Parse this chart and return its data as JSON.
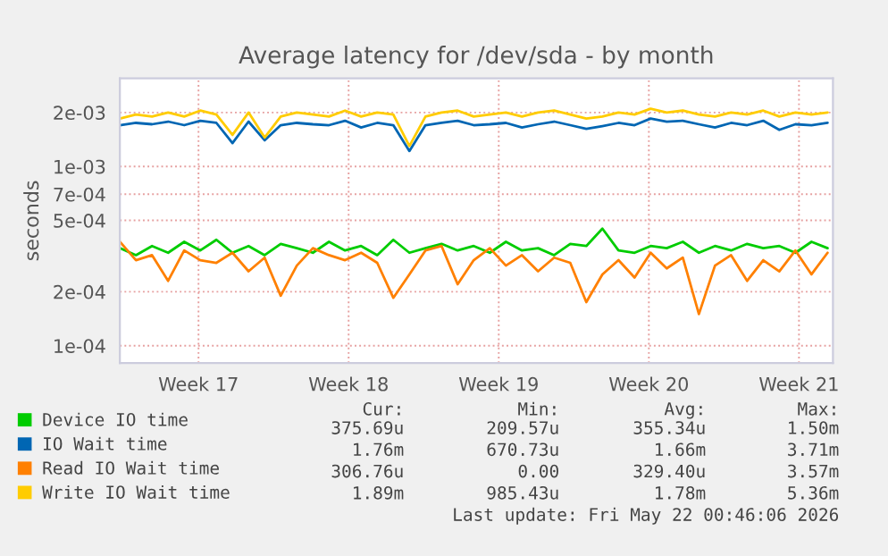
{
  "chart_data": {
    "type": "line",
    "title": "Average latency for /dev/sda - by month",
    "ylabel": "seconds",
    "x": [
      "2026-04-19T20:00",
      "2026-04-20T14:00",
      "2026-04-21T08:00",
      "2026-04-22T02:00",
      "2026-04-22T20:00",
      "2026-04-23T14:00",
      "2026-04-24T08:00",
      "2026-04-25T02:00",
      "2026-04-25T20:00",
      "2026-04-26T14:00",
      "2026-04-27T08:00",
      "2026-04-28T02:00",
      "2026-04-28T20:00",
      "2026-04-29T14:00",
      "2026-04-30T08:00",
      "2026-05-01T02:00",
      "2026-05-01T20:00",
      "2026-05-02T14:00",
      "2026-05-03T08:00",
      "2026-05-04T02:00",
      "2026-05-04T20:00",
      "2026-05-05T14:00",
      "2026-05-06T08:00",
      "2026-05-07T02:00",
      "2026-05-07T20:00",
      "2026-05-08T14:00",
      "2026-05-09T08:00",
      "2026-05-10T02:00",
      "2026-05-10T20:00",
      "2026-05-11T14:00",
      "2026-05-12T08:00",
      "2026-05-13T02:00",
      "2026-05-13T20:00",
      "2026-05-14T14:00",
      "2026-05-15T08:00",
      "2026-05-16T02:00",
      "2026-05-16T20:00",
      "2026-05-17T14:00",
      "2026-05-18T08:00",
      "2026-05-19T02:00",
      "2026-05-19T20:00",
      "2026-05-20T14:00",
      "2026-05-21T08:00",
      "2026-05-22T02:00",
      "2026-05-22T20:00"
    ],
    "series": [
      {
        "name": "Device IO time",
        "color": "#00cc00",
        "values": [
          0.00035,
          0.00032,
          0.00036,
          0.00033,
          0.00038,
          0.00034,
          0.00039,
          0.00033,
          0.00036,
          0.00032,
          0.00037,
          0.00035,
          0.00033,
          0.00038,
          0.00034,
          0.00036,
          0.00032,
          0.00039,
          0.00033,
          0.00035,
          0.00037,
          0.00034,
          0.00036,
          0.00033,
          0.00038,
          0.00034,
          0.00035,
          0.00032,
          0.00037,
          0.00036,
          0.00045,
          0.00034,
          0.00033,
          0.00036,
          0.00035,
          0.00038,
          0.00033,
          0.00036,
          0.00034,
          0.00037,
          0.00035,
          0.00036,
          0.00033,
          0.00038,
          0.00035
        ]
      },
      {
        "name": "IO Wait time",
        "color": "#0066b3",
        "values": [
          0.0017,
          0.00175,
          0.00172,
          0.00178,
          0.0017,
          0.0018,
          0.00175,
          0.00135,
          0.00178,
          0.0014,
          0.0017,
          0.00175,
          0.00172,
          0.0017,
          0.0018,
          0.00165,
          0.00175,
          0.0017,
          0.00122,
          0.0017,
          0.00175,
          0.0018,
          0.0017,
          0.00172,
          0.00175,
          0.00165,
          0.00172,
          0.00178,
          0.0017,
          0.00162,
          0.00168,
          0.00175,
          0.0017,
          0.00185,
          0.00178,
          0.0018,
          0.00172,
          0.00165,
          0.00175,
          0.0017,
          0.0018,
          0.0016,
          0.00172,
          0.0017,
          0.00175
        ]
      },
      {
        "name": "Read IO Wait time",
        "color": "#ff8000",
        "values": [
          0.00038,
          0.0003,
          0.00032,
          0.00023,
          0.00034,
          0.0003,
          0.00029,
          0.00033,
          0.00026,
          0.00031,
          0.00019,
          0.00028,
          0.00035,
          0.00032,
          0.0003,
          0.00033,
          0.00029,
          0.000185,
          0.00025,
          0.00034,
          0.00036,
          0.00022,
          0.0003,
          0.00035,
          0.00028,
          0.00032,
          0.00026,
          0.00031,
          0.00029,
          0.000175,
          0.00025,
          0.0003,
          0.00024,
          0.00033,
          0.00027,
          0.00031,
          0.00015,
          0.00028,
          0.00032,
          0.00023,
          0.0003,
          0.00026,
          0.00034,
          0.00025,
          0.00033
        ]
      },
      {
        "name": "Write IO Wait time",
        "color": "#ffcc00",
        "values": [
          0.00185,
          0.00195,
          0.0019,
          0.002,
          0.0019,
          0.00205,
          0.00195,
          0.0015,
          0.002,
          0.00145,
          0.0019,
          0.002,
          0.00195,
          0.0019,
          0.00205,
          0.0019,
          0.002,
          0.00195,
          0.0013,
          0.0019,
          0.002,
          0.00205,
          0.0019,
          0.00195,
          0.002,
          0.0019,
          0.002,
          0.00205,
          0.00195,
          0.00185,
          0.0019,
          0.002,
          0.00195,
          0.0021,
          0.002,
          0.00205,
          0.00195,
          0.0019,
          0.002,
          0.00195,
          0.00205,
          0.0019,
          0.002,
          0.00195,
          0.002
        ]
      }
    ],
    "log": true,
    "ylim": [
      8e-05,
      0.0031
    ],
    "yticks": [
      {
        "value": 0.0001,
        "label": "1e-04"
      },
      {
        "value": 0.0002,
        "label": "2e-04"
      },
      {
        "value": 0.0005,
        "label": "5e-04"
      },
      {
        "value": 0.0007,
        "label": "7e-04"
      },
      {
        "value": 0.001,
        "label": "1e-03"
      },
      {
        "value": 0.002,
        "label": "2e-03"
      }
    ],
    "xlim": [
      "2026-04-19T20:00",
      "2026-05-23T02:00"
    ],
    "xticks": [
      {
        "value": "2026-04-23T12:00",
        "label": "Week 17"
      },
      {
        "value": "2026-04-30T12:00",
        "label": "Week 18"
      },
      {
        "value": "2026-05-07T12:00",
        "label": "Week 19"
      },
      {
        "value": "2026-05-14T12:00",
        "label": "Week 20"
      },
      {
        "value": "2026-05-21T12:00",
        "label": "Week 21"
      }
    ],
    "grid": true,
    "legend": "bottom",
    "annotations": [
      "Cur:",
      "Min:",
      "Avg:",
      "Max:",
      "375.69u",
      "209.57u",
      "355.34u",
      "1.50m",
      "1.76m",
      "670.73u",
      "1.66m",
      "3.71m",
      "306.76u",
      "0.00",
      "329.40u",
      "3.57m",
      "1.89m",
      "985.43u",
      "1.78m",
      "5.36m",
      "Last update: Fri May 22 00:46:06 2026"
    ]
  }
}
